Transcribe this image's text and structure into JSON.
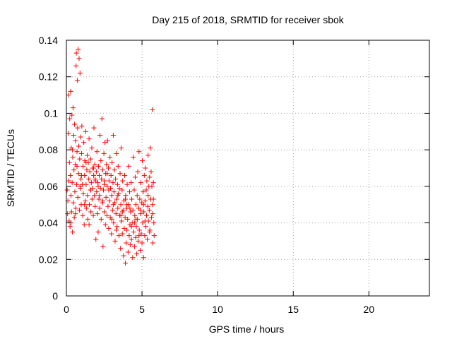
{
  "chart_data": {
    "type": "scatter",
    "title": "Day 215 of 2018, SRMTID for receiver sbok",
    "xlabel": "GPS time / hours",
    "ylabel": "SRMTID / TECUs",
    "xlim": [
      0,
      24
    ],
    "ylim": [
      0,
      0.14
    ],
    "xticks": [
      0,
      5,
      10,
      15,
      20
    ],
    "xtick_labels": [
      "0",
      "5",
      "10",
      "15",
      "20"
    ],
    "yticks": [
      0,
      0.02,
      0.04,
      0.06,
      0.08,
      0.1,
      0.12,
      0.14
    ],
    "ytick_labels": [
      "0",
      "0.02",
      "0.04",
      "0.06",
      "0.08",
      "0.1",
      "0.12",
      "0.14"
    ],
    "grid": true,
    "marker": "+",
    "series": [
      {
        "name": "SRMTID",
        "color": "#ff0000",
        "points": [
          [
            0.05,
            0.058
          ],
          [
            0.08,
            0.045
          ],
          [
            0.1,
            0.052
          ],
          [
            0.12,
            0.089
          ],
          [
            0.14,
            0.11
          ],
          [
            0.16,
            0.063
          ],
          [
            0.18,
            0.041
          ],
          [
            0.2,
            0.073
          ],
          [
            0.22,
            0.097
          ],
          [
            0.24,
            0.038
          ],
          [
            0.26,
            0.066
          ],
          [
            0.28,
            0.112
          ],
          [
            0.3,
            0.055
          ],
          [
            0.32,
            0.081
          ],
          [
            0.34,
            0.046
          ],
          [
            0.36,
            0.099
          ],
          [
            0.38,
            0.062
          ],
          [
            0.4,
            0.035
          ],
          [
            0.42,
            0.076
          ],
          [
            0.44,
            0.103
          ],
          [
            0.46,
            0.051
          ],
          [
            0.48,
            0.088
          ],
          [
            0.5,
            0.069
          ],
          [
            0.52,
            0.043
          ],
          [
            0.54,
            0.094
          ],
          [
            0.56,
            0.057
          ],
          [
            0.58,
            0.072
          ],
          [
            0.6,
            0.085
          ],
          [
            0.62,
            0.048
          ],
          [
            0.64,
            0.126
          ],
          [
            0.66,
            0.133
          ],
          [
            0.68,
            0.061
          ],
          [
            0.7,
            0.079
          ],
          [
            0.72,
            0.118
          ],
          [
            0.74,
            0.092
          ],
          [
            0.76,
            0.054
          ],
          [
            0.78,
            0.135
          ],
          [
            0.8,
            0.067
          ],
          [
            0.82,
            0.082
          ],
          [
            0.84,
            0.13
          ],
          [
            0.86,
            0.047
          ],
          [
            0.88,
            0.075
          ],
          [
            0.9,
            0.122
          ],
          [
            0.92,
            0.059
          ],
          [
            0.94,
            0.087
          ],
          [
            0.96,
            0.064
          ],
          [
            0.98,
            0.05
          ],
          [
            1.0,
            0.078
          ],
          [
            1.02,
            0.093
          ],
          [
            1.05,
            0.061
          ],
          [
            1.08,
            0.044
          ],
          [
            1.1,
            0.071
          ],
          [
            1.12,
            0.056
          ],
          [
            1.15,
            0.084
          ],
          [
            1.18,
            0.039
          ],
          [
            1.2,
            0.066
          ],
          [
            1.22,
            0.074
          ],
          [
            1.25,
            0.052
          ],
          [
            1.28,
            0.09
          ],
          [
            1.3,
            0.061
          ],
          [
            1.32,
            0.048
          ],
          [
            1.35,
            0.069
          ],
          [
            1.38,
            0.077
          ],
          [
            1.4,
            0.055
          ],
          [
            1.42,
            0.042
          ],
          [
            1.45,
            0.073
          ],
          [
            1.48,
            0.064
          ],
          [
            1.5,
            0.086
          ],
          [
            1.52,
            0.05
          ],
          [
            1.55,
            0.068
          ],
          [
            1.58,
            0.058
          ],
          [
            1.6,
            0.075
          ],
          [
            1.62,
            0.046
          ],
          [
            1.65,
            0.062
          ],
          [
            1.68,
            0.081
          ],
          [
            1.7,
            0.053
          ],
          [
            1.72,
            0.07
          ],
          [
            1.75,
            0.059
          ],
          [
            1.78,
            0.044
          ],
          [
            1.8,
            0.066
          ],
          [
            1.82,
            0.092
          ],
          [
            1.85,
            0.055
          ],
          [
            1.88,
            0.072
          ],
          [
            1.9,
            0.049
          ],
          [
            1.92,
            0.063
          ],
          [
            1.95,
            0.031
          ],
          [
            1.98,
            0.068
          ],
          [
            2.0,
            0.057
          ],
          [
            2.02,
            0.079
          ],
          [
            2.05,
            0.045
          ],
          [
            2.08,
            0.062
          ],
          [
            2.1,
            0.035
          ],
          [
            2.12,
            0.071
          ],
          [
            2.15,
            0.053
          ],
          [
            2.18,
            0.066
          ],
          [
            2.2,
            0.048
          ],
          [
            2.22,
            0.088
          ],
          [
            2.25,
            0.059
          ],
          [
            2.28,
            0.074
          ],
          [
            2.3,
            0.042
          ],
          [
            2.32,
            0.064
          ],
          [
            2.35,
            0.097
          ],
          [
            2.38,
            0.051
          ],
          [
            2.4,
            0.069
          ],
          [
            2.42,
            0.027
          ],
          [
            2.45,
            0.058
          ],
          [
            2.48,
            0.078
          ],
          [
            2.5,
            0.046
          ],
          [
            2.52,
            0.061
          ],
          [
            2.55,
            0.084
          ],
          [
            2.58,
            0.039
          ],
          [
            2.6,
            0.067
          ],
          [
            2.62,
            0.054
          ],
          [
            2.65,
            0.072
          ],
          [
            2.68,
            0.044
          ],
          [
            2.7,
            0.06
          ],
          [
            2.72,
            0.085
          ],
          [
            2.75,
            0.049
          ],
          [
            2.78,
            0.07
          ],
          [
            2.8,
            0.037
          ],
          [
            2.82,
            0.063
          ],
          [
            2.85,
            0.052
          ],
          [
            2.88,
            0.076
          ],
          [
            2.9,
            0.043
          ],
          [
            2.92,
            0.059
          ],
          [
            2.95,
            0.066
          ],
          [
            2.98,
            0.034
          ],
          [
            3.0,
            0.055
          ],
          [
            3.02,
            0.073
          ],
          [
            3.05,
            0.047
          ],
          [
            3.08,
            0.062
          ],
          [
            3.1,
            0.088
          ],
          [
            3.12,
            0.04
          ],
          [
            3.15,
            0.057
          ],
          [
            3.18,
            0.069
          ],
          [
            3.2,
            0.051
          ],
          [
            3.22,
            0.03
          ],
          [
            3.25,
            0.064
          ],
          [
            3.28,
            0.045
          ],
          [
            3.3,
            0.078
          ],
          [
            3.32,
            0.053
          ],
          [
            3.35,
            0.038
          ],
          [
            3.38,
            0.061
          ],
          [
            3.4,
            0.048
          ],
          [
            3.42,
            0.071
          ],
          [
            3.45,
            0.056
          ],
          [
            3.48,
            0.033
          ],
          [
            3.5,
            0.059
          ],
          [
            3.52,
            0.044
          ],
          [
            3.55,
            0.067
          ],
          [
            3.58,
            0.026
          ],
          [
            3.6,
            0.05
          ],
          [
            3.62,
            0.081
          ],
          [
            3.65,
            0.041
          ],
          [
            3.68,
            0.058
          ],
          [
            3.7,
            0.034
          ],
          [
            3.72,
            0.063
          ],
          [
            3.75,
            0.047
          ],
          [
            3.78,
            0.022
          ],
          [
            3.8,
            0.052
          ],
          [
            3.82,
            0.037
          ],
          [
            3.85,
            0.066
          ],
          [
            3.88,
            0.043
          ],
          [
            3.9,
            0.018
          ],
          [
            3.92,
            0.055
          ],
          [
            3.95,
            0.029
          ],
          [
            3.98,
            0.048
          ],
          [
            4.0,
            0.036
          ],
          [
            4.02,
            0.061
          ],
          [
            4.05,
            0.042
          ],
          [
            4.08,
            0.024
          ],
          [
            4.1,
            0.05
          ],
          [
            4.12,
            0.071
          ],
          [
            4.15,
            0.033
          ],
          [
            4.18,
            0.057
          ],
          [
            4.2,
            0.039
          ],
          [
            4.22,
            0.028
          ],
          [
            4.25,
            0.046
          ],
          [
            4.28,
            0.062
          ],
          [
            4.3,
            0.031
          ],
          [
            4.32,
            0.053
          ],
          [
            4.35,
            0.04
          ],
          [
            4.38,
            0.021
          ],
          [
            4.4,
            0.047
          ],
          [
            4.42,
            0.076
          ],
          [
            4.45,
            0.035
          ],
          [
            4.48,
            0.058
          ],
          [
            4.5,
            0.027
          ],
          [
            4.52,
            0.044
          ],
          [
            4.55,
            0.065
          ],
          [
            4.58,
            0.032
          ],
          [
            4.6,
            0.05
          ],
          [
            4.62,
            0.038
          ],
          [
            4.65,
            0.023
          ],
          [
            4.68,
            0.055
          ],
          [
            4.7,
            0.042
          ],
          [
            4.72,
            0.068
          ],
          [
            4.75,
            0.03
          ],
          [
            4.78,
            0.048
          ],
          [
            4.8,
            0.079
          ],
          [
            4.82,
            0.036
          ],
          [
            4.85,
            0.053
          ],
          [
            4.88,
            0.025
          ],
          [
            4.9,
            0.045
          ],
          [
            4.92,
            0.062
          ],
          [
            4.95,
            0.034
          ],
          [
            4.98,
            0.051
          ],
          [
            5.0,
            0.029
          ],
          [
            5.02,
            0.074
          ],
          [
            5.05,
            0.04
          ],
          [
            5.08,
            0.057
          ],
          [
            5.1,
            0.021
          ],
          [
            5.12,
            0.046
          ],
          [
            5.15,
            0.066
          ],
          [
            5.18,
            0.033
          ],
          [
            5.2,
            0.052
          ],
          [
            5.22,
            0.07
          ],
          [
            5.25,
            0.038
          ],
          [
            5.28,
            0.058
          ],
          [
            5.3,
            0.044
          ],
          [
            5.32,
            0.063
          ],
          [
            5.35,
            0.031
          ],
          [
            5.38,
            0.049
          ],
          [
            5.4,
            0.077
          ],
          [
            5.42,
            0.041
          ],
          [
            5.45,
            0.06
          ],
          [
            5.48,
            0.047
          ],
          [
            5.5,
            0.065
          ],
          [
            5.52,
            0.036
          ],
          [
            5.55,
            0.081
          ],
          [
            5.58,
            0.053
          ],
          [
            5.6,
            0.068
          ],
          [
            5.62,
            0.043
          ],
          [
            5.65,
            0.06
          ],
          [
            5.68,
            0.102
          ],
          [
            5.7,
            0.045
          ],
          [
            5.72,
            0.029
          ],
          [
            5.75,
            0.062
          ],
          [
            5.78,
            0.04
          ],
          [
            5.8,
            0.033
          ],
          [
            0.3,
            0.04
          ],
          [
            0.6,
            0.045
          ],
          [
            0.9,
            0.06
          ],
          [
            1.2,
            0.05
          ],
          [
            1.5,
            0.039
          ],
          [
            1.8,
            0.07
          ],
          [
            2.1,
            0.06
          ],
          [
            2.4,
            0.052
          ],
          [
            2.7,
            0.067
          ],
          [
            3.0,
            0.042
          ],
          [
            3.3,
            0.036
          ],
          [
            3.6,
            0.044
          ],
          [
            3.9,
            0.053
          ],
          [
            4.2,
            0.048
          ],
          [
            4.5,
            0.04
          ],
          [
            4.8,
            0.033
          ],
          [
            5.1,
            0.05
          ],
          [
            5.4,
            0.055
          ],
          [
            5.7,
            0.05
          ],
          [
            0.4,
            0.08
          ],
          [
            0.7,
            0.071
          ],
          [
            1.0,
            0.066
          ],
          [
            1.3,
            0.073
          ],
          [
            1.6,
            0.058
          ],
          [
            1.9,
            0.064
          ],
          [
            2.2,
            0.055
          ],
          [
            2.5,
            0.063
          ],
          [
            2.8,
            0.058
          ],
          [
            3.1,
            0.05
          ],
          [
            3.4,
            0.055
          ],
          [
            3.7,
            0.046
          ],
          [
            4.0,
            0.05
          ],
          [
            4.3,
            0.038
          ],
          [
            4.6,
            0.042
          ],
          [
            4.9,
            0.047
          ],
          [
            5.2,
            0.041
          ],
          [
            5.5,
            0.035
          ],
          [
            5.75,
            0.053
          ]
        ]
      }
    ]
  }
}
